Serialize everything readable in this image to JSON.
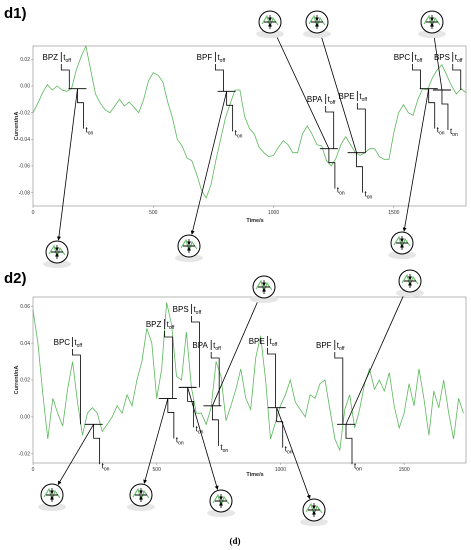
{
  "caption": "(d)",
  "colors": {
    "trace": "#5cb85c",
    "axis": "#888888",
    "annot": "#000000"
  },
  "chart_data": [
    {
      "panel": "d1)",
      "type": "line",
      "xlabel": "Time/s",
      "ylabel": "Current/nA",
      "xlim": [
        0,
        1800
      ],
      "ylim": [
        -0.09,
        0.03
      ],
      "x_ticks": [
        0,
        500,
        1000,
        1500
      ],
      "y_ticks": [
        0.02,
        0.0,
        -0.02,
        -0.04,
        -0.06,
        -0.08
      ],
      "y_tick_labels": [
        "0.02",
        "0.00",
        "-0.02",
        "-0.04",
        "-0.06",
        "-0.08"
      ],
      "series": [
        {
          "x": [
            0,
            20,
            40,
            60,
            80,
            100,
            120,
            140,
            160,
            180,
            200,
            220,
            240,
            260,
            280,
            300,
            320,
            340,
            360,
            380,
            400,
            420,
            440,
            460,
            480,
            500,
            520,
            540,
            560,
            580,
            600,
            620,
            640,
            660,
            680,
            700,
            720,
            740,
            760,
            780,
            800,
            820,
            840,
            860,
            880,
            900,
            920,
            940,
            960,
            980,
            1000,
            1020,
            1040,
            1060,
            1080,
            1100,
            1120,
            1140,
            1160,
            1180,
            1200,
            1220,
            1240,
            1260,
            1280,
            1300,
            1320,
            1340,
            1360,
            1380,
            1400,
            1420,
            1440,
            1460,
            1480,
            1500,
            1520,
            1540,
            1560,
            1580,
            1600,
            1620,
            1640,
            1660,
            1680,
            1700,
            1720,
            1740,
            1760,
            1780,
            1800
          ],
          "y": [
            -0.02,
            -0.013,
            -0.005,
            0.001,
            -0.003,
            0.0,
            -0.003,
            -0.004,
            -0.002,
            0.012,
            0.022,
            0.03,
            0.012,
            -0.006,
            -0.013,
            -0.018,
            -0.02,
            -0.015,
            -0.01,
            -0.015,
            -0.012,
            -0.016,
            -0.02,
            -0.01,
            0.004,
            0.01,
            0.008,
            0.003,
            -0.012,
            -0.024,
            -0.04,
            -0.045,
            -0.054,
            -0.056,
            -0.066,
            -0.078,
            -0.084,
            -0.074,
            -0.056,
            -0.04,
            -0.024,
            -0.013,
            -0.003,
            -0.003,
            -0.023,
            -0.032,
            -0.036,
            -0.046,
            -0.05,
            -0.053,
            -0.052,
            -0.046,
            -0.041,
            -0.044,
            -0.05,
            -0.05,
            -0.036,
            -0.03,
            -0.036,
            -0.044,
            -0.045,
            -0.056,
            -0.06,
            -0.054,
            -0.044,
            -0.038,
            -0.044,
            -0.05,
            -0.052,
            -0.05,
            -0.047,
            -0.047,
            -0.053,
            -0.055,
            -0.055,
            -0.035,
            -0.02,
            -0.014,
            -0.02,
            -0.022,
            -0.01,
            -0.002,
            -0.003,
            0.006,
            0.012,
            0.016,
            0.008,
            0.0,
            -0.006,
            -0.002,
            -0.005
          ]
        }
      ],
      "events": [
        {
          "name": "BPZ",
          "t_off": "off",
          "t_on": "on",
          "x": 185,
          "y": -0.002
        },
        {
          "name": "BPF",
          "t_off": "off",
          "t_on": "on",
          "x": 805,
          "y": -0.004
        },
        {
          "name": "BPA",
          "t_off": "off",
          "t_on": "on",
          "x": 1230,
          "y": -0.047
        },
        {
          "name": "BPE",
          "t_off": "off",
          "t_on": "on",
          "x": 1345,
          "y": -0.05
        },
        {
          "name": "BPC",
          "t_off": "off",
          "t_on": "on",
          "x": 1645,
          "y": -0.002
        },
        {
          "name": "BPS",
          "t_off": "off",
          "t_on": "on",
          "x": 1700,
          "y": -0.003
        }
      ]
    },
    {
      "panel": "d2)",
      "type": "line",
      "xlabel": "Time/s",
      "ylabel": "Current/nA",
      "xlim": [
        0,
        1750
      ],
      "ylim": [
        -0.025,
        0.065
      ],
      "x_ticks": [
        0,
        500,
        1000,
        1500
      ],
      "y_ticks": [
        0.06,
        0.04,
        0.02,
        0.0,
        -0.02
      ],
      "y_tick_labels": [
        "0.06",
        "0.04",
        "0.02",
        "0.00",
        "-0.02"
      ],
      "series": [
        {
          "x": [
            0,
            20,
            40,
            60,
            80,
            100,
            120,
            140,
            160,
            180,
            200,
            220,
            240,
            260,
            280,
            300,
            320,
            340,
            360,
            380,
            400,
            420,
            440,
            460,
            480,
            500,
            520,
            540,
            560,
            580,
            600,
            620,
            640,
            660,
            680,
            700,
            720,
            740,
            760,
            780,
            800,
            820,
            840,
            860,
            880,
            900,
            920,
            940,
            960,
            980,
            1000,
            1020,
            1040,
            1060,
            1080,
            1100,
            1120,
            1140,
            1160,
            1180,
            1200,
            1220,
            1240,
            1260,
            1280,
            1300,
            1320,
            1340,
            1360,
            1380,
            1400,
            1420,
            1440,
            1460,
            1480,
            1500,
            1520,
            1540,
            1560,
            1580,
            1600,
            1620,
            1640,
            1660,
            1680,
            1700,
            1720,
            1740
          ],
          "y": [
            0.058,
            0.04,
            0.012,
            -0.012,
            0.01,
            0.002,
            -0.005,
            0.015,
            0.03,
            0.008,
            -0.01,
            0.002,
            0.005,
            0.002,
            -0.008,
            -0.004,
            0.0,
            0.006,
            0.002,
            0.012,
            0.006,
            0.02,
            0.03,
            0.048,
            0.04,
            0.01,
            0.026,
            0.062,
            0.05,
            0.022,
            0.02,
            0.046,
            0.016,
            0.002,
            0.002,
            -0.004,
            0.005,
            0.03,
            0.022,
            -0.002,
            0.006,
            0.015,
            0.026,
            0.01,
            0.004,
            0.032,
            0.044,
            0.02,
            -0.012,
            -0.003,
            0.006,
            0.012,
            0.02,
            0.008,
            0.004,
            0.0,
            0.012,
            0.01,
            0.018,
            0.02,
            0.004,
            -0.012,
            -0.018,
            0.004,
            0.012,
            -0.006,
            0.004,
            0.018,
            0.026,
            0.015,
            0.02,
            0.014,
            0.024,
            0.006,
            -0.006,
            0.002,
            0.018,
            0.006,
            0.026,
            0.01,
            -0.01,
            0.014,
            0.005,
            0.02,
            0.002,
            -0.012,
            0.01,
            0.002
          ]
        }
      ],
      "events": [
        {
          "name": "BPC",
          "t_off": "off",
          "t_on": "on",
          "x": 245,
          "y": -0.004
        },
        {
          "name": "BPZ",
          "t_off": "off",
          "t_on": "on",
          "x": 545,
          "y": 0.01
        },
        {
          "name": "BPS",
          "t_off": "off",
          "t_on": "on",
          "x": 625,
          "y": 0.016
        },
        {
          "name": "BPA",
          "t_off": "off",
          "t_on": "on",
          "x": 725,
          "y": 0.006
        },
        {
          "name": "BPE",
          "t_off": "off",
          "t_on": "on",
          "x": 985,
          "y": 0.005
        },
        {
          "name": "BPF",
          "t_off": "off",
          "t_on": "on",
          "x": 1265,
          "y": -0.004
        }
      ]
    }
  ]
}
